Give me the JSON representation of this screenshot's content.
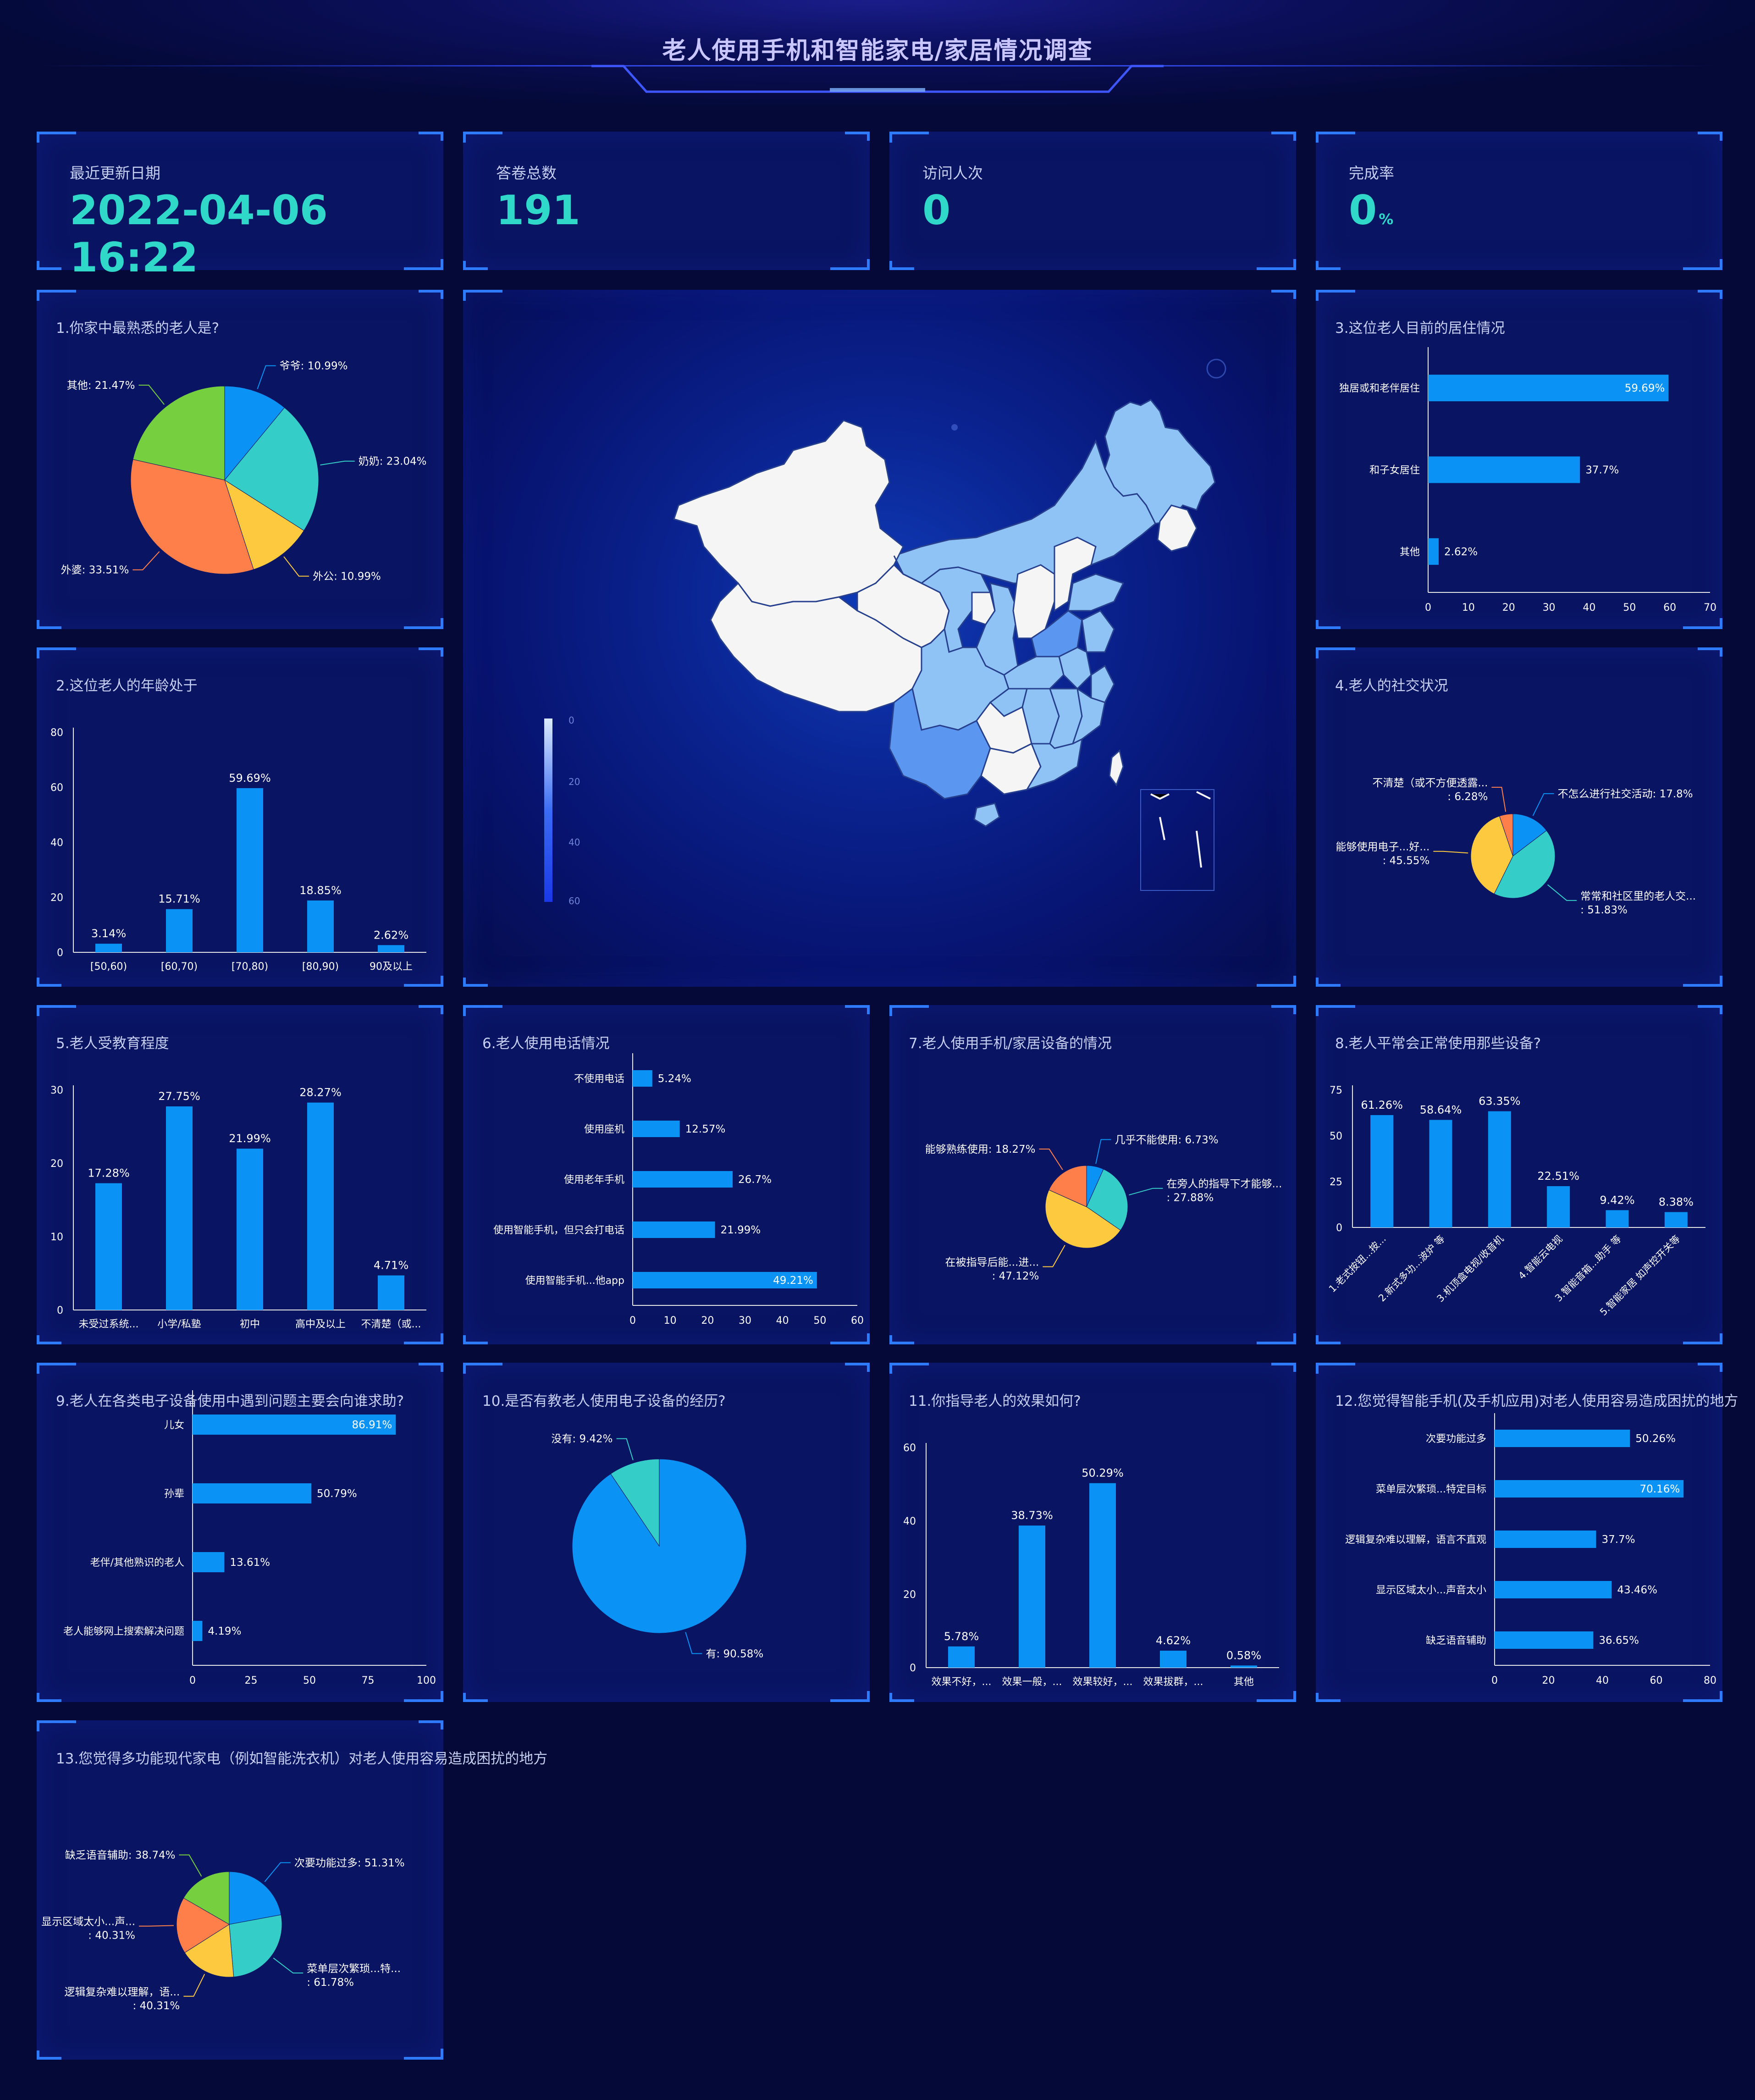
{
  "header": {
    "title": "老人使用手机和智能家电/家居情况调查"
  },
  "stats": [
    {
      "label": "最近更新日期",
      "value": "2022-04-06 16:22",
      "unit": ""
    },
    {
      "label": "答卷总数",
      "value": "191",
      "unit": ""
    },
    {
      "label": "访问人次",
      "value": "0",
      "unit": ""
    },
    {
      "label": "完成率",
      "value": "0",
      "unit": "%"
    }
  ],
  "colors": {
    "blue": "#0a93f5",
    "teal": "#35cdc7",
    "yellow": "#fdc93f",
    "orange": "#ff7f4a",
    "green": "#76cf3f",
    "label": "#ffffff",
    "leader": "#bfbfbf"
  },
  "map": {
    "legend_ticks": [
      "0",
      "20",
      "40",
      "60"
    ],
    "colors": {
      "low": "#f5f5f5",
      "mid": "#90c2f5",
      "high": "#5b97f0"
    }
  },
  "chart_data": [
    {
      "id": "q1",
      "title": "1.你家中最熟悉的老人是?",
      "type": "pie",
      "slices": [
        {
          "label": "爷爷: 10.99%",
          "value": 10.99
        },
        {
          "label": "奶奶: 23.04%",
          "value": 23.04
        },
        {
          "label": "外公: 10.99%",
          "value": 10.99
        },
        {
          "label": "外婆: 33.51%",
          "value": 33.51
        },
        {
          "label": "其他: 21.47%",
          "value": 21.47
        }
      ]
    },
    {
      "id": "q2",
      "title": "2.这位老人的年龄处于",
      "type": "bar",
      "categories": [
        "[50,60)",
        "[60,70)",
        "[70,80)",
        "[80,90)",
        "90及以上"
      ],
      "values": [
        3.14,
        15.71,
        59.69,
        18.85,
        2.62
      ],
      "labels": [
        "3.14%",
        "15.71%",
        "59.69%",
        "18.85%",
        "2.62%"
      ],
      "ylim": [
        0,
        80
      ],
      "ticks": [
        "0",
        "20",
        "40",
        "60",
        "80"
      ]
    },
    {
      "id": "q3",
      "title": "3.这位老人目前的居住情况",
      "type": "bar",
      "orientation": "horizontal",
      "categories": [
        "独居或和老伴居住",
        "和子女居住",
        "其他"
      ],
      "values": [
        59.69,
        37.7,
        2.62
      ],
      "labels": [
        "59.69%",
        "37.7%",
        "2.62%"
      ],
      "xlim": [
        0,
        70
      ],
      "ticks": [
        "0",
        "10",
        "20",
        "30",
        "40",
        "50",
        "60",
        "70"
      ]
    },
    {
      "id": "q4",
      "title": "4.老人的社交状况",
      "type": "pie",
      "slices": [
        {
          "label": "不怎么进行社交活动: 17.8%",
          "value": 17.8
        },
        {
          "label": "常常和社区里的老人交... : 51.83%",
          "value": 51.83
        },
        {
          "label": "能够使用电子...好... : 45.55%",
          "value": 45.55
        },
        {
          "label": "不清楚（或不方便透露... : 6.28%",
          "value": 6.28
        }
      ]
    },
    {
      "id": "q5",
      "title": "5.老人受教育程度",
      "type": "bar",
      "categories": [
        "未受过系统...",
        "小学/私塾",
        "初中",
        "高中及以上",
        "不清楚（或..."
      ],
      "values": [
        17.28,
        27.75,
        21.99,
        28.27,
        4.71
      ],
      "labels": [
        "17.28%",
        "27.75%",
        "21.99%",
        "28.27%",
        "4.71%"
      ],
      "ylim": [
        0,
        30
      ],
      "ticks": [
        "0",
        "10",
        "20",
        "30"
      ]
    },
    {
      "id": "q6",
      "title": "6.老人使用电话情况",
      "type": "bar",
      "orientation": "horizontal",
      "categories": [
        "不使用电话",
        "使用座机",
        "使用老年手机",
        "使用智能手机，但只会打电话",
        "使用智能手机...他app"
      ],
      "values": [
        5.24,
        12.57,
        26.7,
        21.99,
        49.21
      ],
      "labels": [
        "5.24%",
        "12.57%",
        "26.7%",
        "21.99%",
        "49.21%"
      ],
      "xlim": [
        0,
        60
      ],
      "ticks": [
        "0",
        "10",
        "20",
        "30",
        "40",
        "50",
        "60"
      ]
    },
    {
      "id": "q7",
      "title": "7.老人使用手机/家居设备的情况",
      "type": "pie",
      "slices": [
        {
          "label": "几乎不能使用: 6.73%",
          "value": 6.73
        },
        {
          "label": "在旁人的指导下才能够... : 27.88%",
          "value": 27.88
        },
        {
          "label": "在被指导后能...进... : 47.12%",
          "value": 47.12
        },
        {
          "label": "能够熟练使用: 18.27%",
          "value": 18.27
        }
      ]
    },
    {
      "id": "q8",
      "title": "8.老人平常会正常使用那些设备?",
      "type": "bar",
      "categories": [
        "1.老式按钮...按...",
        "2.新式多功...波炉 等",
        "3.机顶盒电视/收音机",
        "4.智能云电视",
        "3.智能音箱...助手 等",
        "5.智能家居 如声控开关等"
      ],
      "values": [
        61.26,
        58.64,
        63.35,
        22.51,
        9.42,
        8.38
      ],
      "labels": [
        "61.26%",
        "58.64%",
        "63.35%",
        "22.51%",
        "9.42%",
        "8.38%"
      ],
      "ylim": [
        0,
        75
      ],
      "ticks": [
        "0",
        "25",
        "50",
        "75"
      ]
    },
    {
      "id": "q9",
      "title": "9.老人在各类电子设备使用中遇到问题主要会向谁求助?",
      "type": "bar",
      "orientation": "horizontal",
      "categories": [
        "儿女",
        "孙辈",
        "老伴/其他熟识的老人",
        "老人能够网上搜索解决问题"
      ],
      "values": [
        86.91,
        50.79,
        13.61,
        4.19
      ],
      "labels": [
        "86.91%",
        "50.79%",
        "13.61%",
        "4.19%"
      ],
      "xlim": [
        0,
        100
      ],
      "ticks": [
        "0",
        "25",
        "50",
        "75",
        "100"
      ]
    },
    {
      "id": "q10",
      "title": "10.是否有教老人使用电子设备的经历?",
      "type": "pie",
      "slices": [
        {
          "label": "有: 90.58%",
          "value": 90.58
        },
        {
          "label": "没有: 9.42%",
          "value": 9.42
        }
      ]
    },
    {
      "id": "q11",
      "title": "11.你指导老人的效果如何?",
      "type": "bar",
      "categories": [
        "效果不好，...",
        "效果一般，...",
        "效果较好，...",
        "效果拔群，...",
        "其他"
      ],
      "values": [
        5.78,
        38.73,
        50.29,
        4.62,
        0.58
      ],
      "labels": [
        "5.78%",
        "38.73%",
        "50.29%",
        "4.62%",
        "0.58%"
      ],
      "ylim": [
        0,
        60
      ],
      "ticks": [
        "0",
        "20",
        "40",
        "60"
      ]
    },
    {
      "id": "q12",
      "title": "12.您觉得智能手机(及手机应用)对老人使用容易造成困扰的地方",
      "type": "bar",
      "orientation": "horizontal",
      "categories": [
        "次要功能过多",
        "菜单层次繁琐...特定目标",
        "逻辑复杂难以理解，语言不直观",
        "显示区域太小...声音太小",
        "缺乏语音辅助"
      ],
      "values": [
        50.26,
        70.16,
        37.7,
        43.46,
        36.65
      ],
      "labels": [
        "50.26%",
        "70.16%",
        "37.7%",
        "43.46%",
        "36.65%"
      ],
      "xlim": [
        0,
        80
      ],
      "ticks": [
        "0",
        "20",
        "40",
        "60",
        "80"
      ]
    },
    {
      "id": "q13",
      "title": "13.您觉得多功能现代家电（例如智能洗衣机）对老人使用容易造成困扰的地方",
      "type": "pie",
      "slices": [
        {
          "label": "次要功能过多: 51.31%",
          "value": 51.31
        },
        {
          "label": "菜单层次繁琐...特... : 61.78%",
          "value": 61.78
        },
        {
          "label": "逻辑复杂难以理解，语... : 40.31%",
          "value": 40.31
        },
        {
          "label": "显示区域太小...声... : 40.31%",
          "value": 40.31
        },
        {
          "label": "缺乏语音辅助: 38.74%",
          "value": 38.74
        }
      ]
    }
  ]
}
